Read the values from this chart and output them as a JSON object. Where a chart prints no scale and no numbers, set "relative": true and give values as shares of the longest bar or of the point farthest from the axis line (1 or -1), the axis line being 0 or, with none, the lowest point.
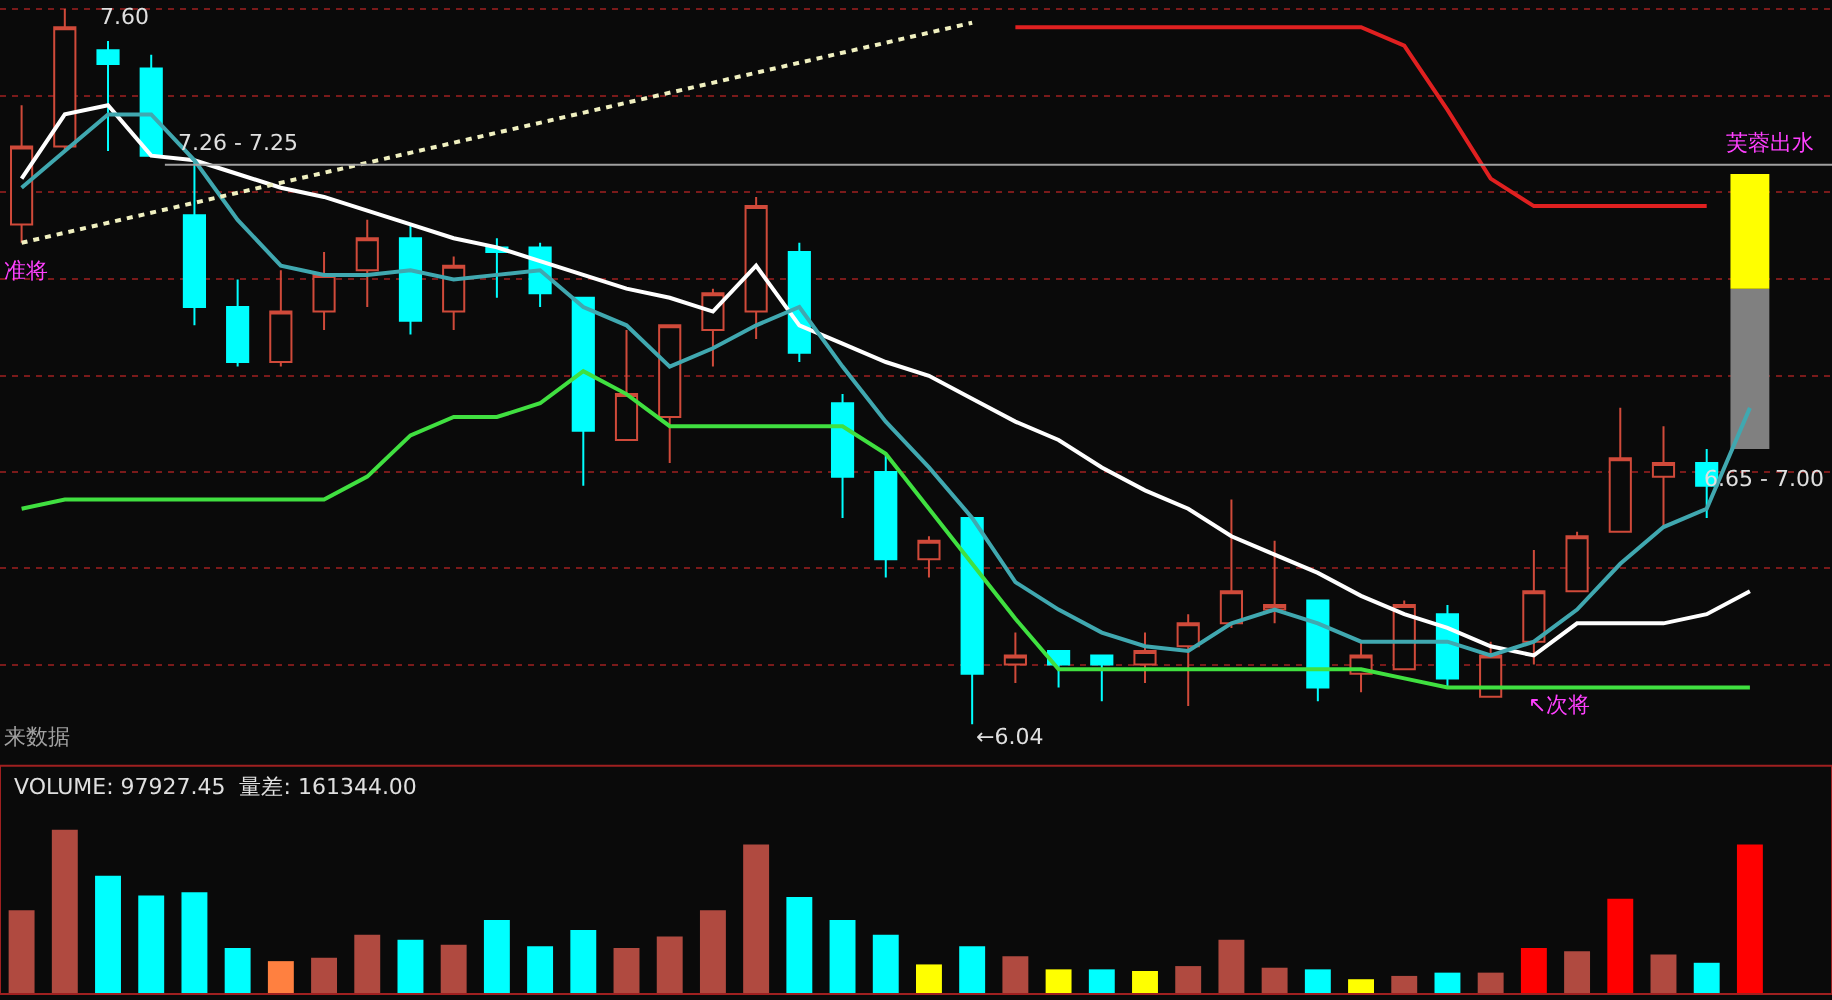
{
  "chart_data": [
    {
      "type": "candlestick",
      "categories": [
        null,
        null,
        null,
        null,
        null,
        null,
        null,
        null,
        null,
        null,
        null,
        null,
        null,
        null,
        null,
        null,
        null,
        null,
        null,
        null,
        null,
        null,
        null,
        null,
        null,
        null,
        null,
        null,
        null,
        null,
        null,
        null,
        null,
        null,
        null,
        null,
        null,
        null,
        null,
        null,
        null
      ],
      "ohlc": [
        [
          7.13,
          7.39,
          7.09,
          7.3
        ],
        [
          7.3,
          7.6,
          7.29,
          7.56
        ],
        [
          7.51,
          7.53,
          7.29,
          7.48
        ],
        [
          7.47,
          7.5,
          7.28,
          7.28
        ],
        [
          7.15,
          7.27,
          6.91,
          6.95
        ],
        [
          6.95,
          7.01,
          6.82,
          6.83
        ],
        [
          6.83,
          7.03,
          6.82,
          6.94
        ],
        [
          6.94,
          7.07,
          6.9,
          7.02
        ],
        [
          7.03,
          7.14,
          6.95,
          7.1
        ],
        [
          7.1,
          7.13,
          6.89,
          6.92
        ],
        [
          6.94,
          7.06,
          6.9,
          7.04
        ],
        [
          7.08,
          7.1,
          6.97,
          7.07
        ],
        [
          7.08,
          7.09,
          6.95,
          6.98
        ],
        [
          6.97,
          6.97,
          6.56,
          6.68
        ],
        [
          6.66,
          6.9,
          6.66,
          6.76
        ],
        [
          6.71,
          6.91,
          6.61,
          6.91
        ],
        [
          6.9,
          6.99,
          6.82,
          6.98
        ],
        [
          6.94,
          7.19,
          6.88,
          7.17
        ],
        [
          7.07,
          7.09,
          6.83,
          6.85
        ],
        [
          6.74,
          6.76,
          6.49,
          6.58
        ],
        [
          6.59,
          6.63,
          6.36,
          6.4
        ],
        [
          6.4,
          6.45,
          6.36,
          6.44
        ],
        [
          6.49,
          6.49,
          6.04,
          6.15
        ],
        [
          6.17,
          6.24,
          6.13,
          6.19
        ],
        [
          6.2,
          6.2,
          6.12,
          6.17
        ],
        [
          6.19,
          6.19,
          6.09,
          6.17
        ],
        [
          6.17,
          6.24,
          6.13,
          6.2
        ],
        [
          6.21,
          6.28,
          6.08,
          6.26
        ],
        [
          6.26,
          6.53,
          6.25,
          6.33
        ],
        [
          6.29,
          6.44,
          6.26,
          6.3
        ],
        [
          6.31,
          6.31,
          6.09,
          6.12
        ],
        [
          6.15,
          6.22,
          6.11,
          6.19
        ],
        [
          6.16,
          6.31,
          6.16,
          6.3
        ],
        [
          6.28,
          6.3,
          6.12,
          6.14
        ],
        [
          6.1,
          6.22,
          6.1,
          6.19
        ],
        [
          6.22,
          6.42,
          6.17,
          6.33
        ],
        [
          6.33,
          6.46,
          6.33,
          6.45
        ],
        [
          6.46,
          6.73,
          6.46,
          6.62
        ],
        [
          6.58,
          6.69,
          6.47,
          6.61
        ],
        [
          6.61,
          6.64,
          6.49,
          6.56
        ],
        null
      ],
      "colors": [
        "#d04a3a",
        "#d04a3a",
        "#00ffff",
        "#00ffff",
        "#00ffff",
        "#00ffff",
        "#d04a3a",
        "#d04a3a",
        "#d04a3a",
        "#00ffff",
        "#d04a3a",
        "#00ffff",
        "#00ffff",
        "#00ffff",
        "#d04a3a",
        "#d04a3a",
        "#d04a3a",
        "#d04a3a",
        "#00ffff",
        "#00ffff",
        "#00ffff",
        "#d04a3a",
        "#00ffff",
        "#d04a3a",
        "#00ffff",
        "#00ffff",
        "#d04a3a",
        "#d04a3a",
        "#d04a3a",
        "#d04a3a",
        "#00ffff",
        "#d04a3a",
        "#d04a3a",
        "#00ffff",
        "#d04a3a",
        "#d04a3a",
        "#d04a3a",
        "#d04a3a",
        "#d04a3a",
        "#00ffff",
        null
      ],
      "series": [
        {
          "type": "line",
          "color": "#ffffff",
          "values": [
            7.23,
            7.37,
            7.39,
            7.28,
            7.27,
            7.24,
            7.21,
            7.19,
            7.16,
            7.13,
            7.1,
            7.08,
            7.05,
            7.02,
            6.99,
            6.97,
            6.94,
            7.04,
            6.91,
            6.87,
            6.83,
            6.8,
            6.75,
            6.7,
            6.66,
            6.6,
            6.55,
            6.51,
            6.45,
            6.41,
            6.37,
            6.32,
            6.28,
            6.25,
            6.21,
            6.19,
            6.26,
            6.26,
            6.26,
            6.28,
            6.33
          ]
        },
        {
          "type": "line",
          "color": "#40a8b0",
          "values": [
            7.21,
            7.29,
            7.37,
            7.37,
            7.27,
            7.14,
            7.04,
            7.02,
            7.02,
            7.03,
            7.01,
            7.02,
            7.03,
            6.95,
            6.91,
            6.82,
            6.86,
            6.91,
            6.95,
            6.82,
            6.7,
            6.6,
            6.49,
            6.35,
            6.29,
            6.24,
            6.21,
            6.2,
            6.26,
            6.29,
            6.26,
            6.22,
            6.22,
            6.22,
            6.19,
            6.22,
            6.29,
            6.39,
            6.47,
            6.51,
            6.73
          ]
        },
        {
          "type": "line",
          "color": "#40e040",
          "values": [
            6.51,
            6.53,
            6.53,
            6.53,
            6.53,
            6.53,
            6.53,
            6.53,
            6.58,
            6.67,
            6.71,
            6.71,
            6.74,
            6.81,
            6.76,
            6.69,
            6.69,
            6.69,
            6.69,
            6.69,
            6.63,
            6.51,
            6.39,
            6.27,
            6.16,
            6.16,
            6.16,
            6.16,
            6.16,
            6.16,
            6.16,
            6.16,
            6.14,
            6.12,
            6.12,
            6.12,
            6.12,
            6.12,
            6.12,
            6.12,
            6.12
          ]
        },
        {
          "type": "line",
          "color": "#e02020",
          "values": [
            null,
            null,
            null,
            null,
            null,
            null,
            null,
            null,
            null,
            null,
            null,
            null,
            null,
            null,
            null,
            null,
            null,
            null,
            null,
            null,
            null,
            null,
            null,
            7.56,
            7.56,
            7.56,
            7.56,
            7.56,
            7.56,
            7.56,
            7.56,
            7.56,
            7.52,
            7.38,
            7.23,
            7.17,
            7.17,
            7.17,
            7.17,
            7.17,
            null
          ]
        },
        {
          "type": "line",
          "color": "#f0f0c0",
          "line_style": "dotted",
          "values": [
            7.09,
            null,
            null,
            null,
            null,
            null,
            null,
            null,
            null,
            null,
            null,
            null,
            null,
            null,
            null,
            null,
            null,
            null,
            null,
            null,
            null,
            null,
            7.57,
            null,
            null,
            null,
            null,
            null,
            null,
            null,
            null,
            null,
            null,
            null,
            null,
            null,
            null,
            null,
            null,
            null,
            null
          ]
        },
        {
          "type": "bar",
          "color": "#808080",
          "values": [
            null,
            null,
            null,
            null,
            null,
            null,
            null,
            null,
            null,
            null,
            null,
            null,
            null,
            null,
            null,
            null,
            null,
            null,
            null,
            null,
            null,
            null,
            null,
            null,
            null,
            null,
            null,
            null,
            null,
            null,
            null,
            null,
            null,
            null,
            null,
            null,
            null,
            null,
            null,
            null,
            0.35
          ],
          "base": [
            null,
            null,
            null,
            null,
            null,
            null,
            null,
            null,
            null,
            null,
            null,
            null,
            null,
            null,
            null,
            null,
            null,
            null,
            null,
            null,
            null,
            null,
            null,
            null,
            null,
            null,
            null,
            null,
            null,
            null,
            null,
            null,
            null,
            null,
            null,
            null,
            null,
            null,
            null,
            null,
            6.64
          ]
        },
        {
          "type": "bar",
          "color": "#ffff00",
          "values": [
            null,
            null,
            null,
            null,
            null,
            null,
            null,
            null,
            null,
            null,
            null,
            null,
            null,
            null,
            null,
            null,
            null,
            null,
            null,
            null,
            null,
            null,
            null,
            null,
            null,
            null,
            null,
            null,
            null,
            null,
            null,
            null,
            null,
            null,
            null,
            null,
            null,
            null,
            null,
            null,
            0.25
          ],
          "base": [
            null,
            null,
            null,
            null,
            null,
            null,
            null,
            null,
            null,
            null,
            null,
            null,
            null,
            null,
            null,
            null,
            null,
            null,
            null,
            null,
            null,
            null,
            null,
            null,
            null,
            null,
            null,
            null,
            null,
            null,
            null,
            null,
            null,
            null,
            null,
            null,
            null,
            null,
            null,
            null,
            6.99
          ]
        }
      ],
      "yticks": [
        {
          "value": 7.6,
          "label": null
        },
        {
          "value": 7.41,
          "label": null
        },
        {
          "value": 7.2,
          "label": null
        },
        {
          "value": 7.01,
          "label": null
        },
        {
          "value": 6.8,
          "label": null
        },
        {
          "value": 6.59,
          "label": null
        },
        {
          "value": 6.38,
          "label": null
        },
        {
          "value": 6.17,
          "label": null
        }
      ],
      "grid": "y",
      "ref_lines": [
        {
          "axis": "y",
          "value": 7.26,
          "label": "7.26 - 7.25",
          "color": "#a0a0a0"
        }
      ],
      "annotations": [
        "7.60",
        "←6.04",
        "6.65 - 7.00",
        "芙蓉出水",
        "↖次将",
        "准将",
        "来数据"
      ]
    },
    {
      "type": "bar",
      "relative": true,
      "title": "VOLUME: 97927.45  量差: 161344.00",
      "categories": [
        null,
        null,
        null,
        null,
        null,
        null,
        null,
        null,
        null,
        null,
        null,
        null,
        null,
        null,
        null,
        null,
        null,
        null,
        null,
        null,
        null,
        null,
        null,
        null,
        null,
        null,
        null,
        null,
        null,
        null,
        null,
        null,
        null,
        null,
        null,
        null,
        null,
        null,
        null,
        null,
        null
      ],
      "values": [
        0.51,
        1,
        0.72,
        0.6,
        0.62,
        0.28,
        0.2,
        0.22,
        0.36,
        0.33,
        0.3,
        0.45,
        0.29,
        0.39,
        0.28,
        0.35,
        0.51,
        0.91,
        0.59,
        0.45,
        0.36,
        0.18,
        0.29,
        0.23,
        0.15,
        0.15,
        0.14,
        0.17,
        0.33,
        0.16,
        0.15,
        0.09,
        0.11,
        0.13,
        0.13,
        0.28,
        0.26,
        0.58,
        0.24,
        0.19,
        0.91
      ],
      "colors": [
        "#b04a40",
        "#b04a40",
        "#00ffff",
        "#00ffff",
        "#00ffff",
        "#00ffff",
        "#ff8040",
        "#b04a40",
        "#b04a40",
        "#00ffff",
        "#b04a40",
        "#00ffff",
        "#00ffff",
        "#00ffff",
        "#b04a40",
        "#b04a40",
        "#b04a40",
        "#b04a40",
        "#00ffff",
        "#00ffff",
        "#00ffff",
        "#ffff00",
        "#00ffff",
        "#b04a40",
        "#ffff00",
        "#00ffff",
        "#ffff00",
        "#b04a40",
        "#b04a40",
        "#b04a40",
        "#00ffff",
        "#ffff00",
        "#b04a40",
        "#00ffff",
        "#b04a40",
        "#ff0000",
        "#b04a40",
        "#ff0000",
        "#b04a40",
        "#00ffff",
        "#ff0000"
      ]
    }
  ]
}
